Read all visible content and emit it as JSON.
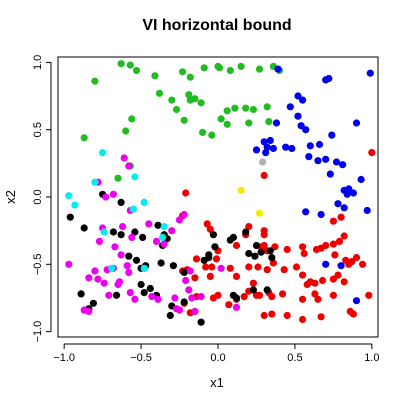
{
  "chart_data": {
    "type": "scatter",
    "title": "VI horizontal bound",
    "xlabel": "x1",
    "ylabel": "x2",
    "xlim": [
      -1.04,
      1.04
    ],
    "ylim": [
      -1.04,
      1.04
    ],
    "x_ticks": [
      -1.0,
      -0.5,
      0.0,
      0.5,
      1.0
    ],
    "x_tick_labels": [
      "−1.0",
      "−0.5",
      "0.0",
      "0.5",
      "1.0"
    ],
    "y_ticks": [
      -1.0,
      -0.5,
      0.0,
      0.5,
      1.0
    ],
    "y_tick_labels": [
      "−1.0",
      "−0.5",
      "0.0",
      "0.5",
      "1.0"
    ],
    "grid": false,
    "legend": "none",
    "colors": {
      "green": "#22bb22",
      "blue": "#0000ee",
      "red": "#ee0000",
      "black": "#000000",
      "magenta": "#ee00ee",
      "cyan": "#00eeee",
      "yellow": "#eeee00",
      "gray": "#b0b0b0"
    },
    "series": [
      {
        "color": "green",
        "points": [
          [
            -0.8,
            0.86
          ],
          [
            -0.63,
            0.99
          ],
          [
            -0.57,
            0.98
          ],
          [
            -0.53,
            0.94
          ],
          [
            -0.41,
            0.9
          ],
          [
            -0.23,
            0.93
          ],
          [
            -0.18,
            0.89
          ],
          [
            -0.09,
            0.96
          ],
          [
            0.0,
            0.97
          ],
          [
            0.01,
            0.96
          ],
          [
            0.08,
            0.94
          ],
          [
            0.15,
            0.97
          ],
          [
            0.27,
            0.95
          ],
          [
            0.36,
            0.97
          ],
          [
            0.4,
            0.94
          ],
          [
            -0.38,
            0.77
          ],
          [
            -0.3,
            0.72
          ],
          [
            -0.27,
            0.65
          ],
          [
            -0.19,
            0.76
          ],
          [
            -0.18,
            0.72
          ],
          [
            -0.15,
            0.73
          ],
          [
            -0.11,
            0.7
          ],
          [
            -0.22,
            0.57
          ],
          [
            -0.1,
            0.48
          ],
          [
            -0.04,
            0.46
          ],
          [
            0.02,
            0.58
          ],
          [
            0.06,
            0.64
          ],
          [
            0.11,
            0.66
          ],
          [
            0.18,
            0.66
          ],
          [
            0.23,
            0.65
          ],
          [
            0.32,
            0.67
          ],
          [
            0.2,
            0.55
          ],
          [
            0.33,
            0.56
          ],
          [
            0.06,
            0.54
          ],
          [
            -0.56,
            0.58
          ],
          [
            -0.6,
            0.49
          ],
          [
            -0.87,
            0.44
          ],
          [
            -0.57,
            0.23
          ],
          [
            -0.65,
            0.14
          ]
        ]
      },
      {
        "color": "blue",
        "points": [
          [
            0.39,
            0.95
          ],
          [
            0.99,
            0.92
          ],
          [
            0.7,
            0.87
          ],
          [
            0.72,
            0.88
          ],
          [
            0.52,
            0.75
          ],
          [
            0.55,
            0.72
          ],
          [
            0.47,
            0.67
          ],
          [
            0.52,
            0.6
          ],
          [
            0.54,
            0.53
          ],
          [
            0.57,
            0.5
          ],
          [
            0.38,
            0.55
          ],
          [
            0.9,
            0.55
          ],
          [
            0.74,
            0.46
          ],
          [
            0.6,
            0.38
          ],
          [
            0.66,
            0.39
          ],
          [
            0.34,
            0.42
          ],
          [
            0.3,
            0.41
          ],
          [
            0.32,
            0.37
          ],
          [
            0.25,
            0.35
          ],
          [
            0.31,
            0.33
          ],
          [
            0.36,
            0.36
          ],
          [
            0.44,
            0.37
          ],
          [
            0.48,
            0.36
          ],
          [
            0.59,
            0.3
          ],
          [
            0.65,
            0.27
          ],
          [
            0.7,
            0.28
          ],
          [
            0.73,
            0.17
          ],
          [
            0.77,
            0.26
          ],
          [
            0.81,
            0.24
          ],
          [
            0.82,
            0.05
          ],
          [
            0.84,
            0.02
          ],
          [
            0.85,
            0.06
          ],
          [
            0.88,
            0.03
          ],
          [
            0.93,
            0.13
          ],
          [
            0.97,
            -0.1
          ],
          [
            0.57,
            -0.11
          ],
          [
            0.67,
            -0.13
          ],
          [
            0.78,
            -0.05
          ],
          [
            0.82,
            -0.08
          ],
          [
            0.7,
            -0.5
          ],
          [
            0.8,
            -0.51
          ],
          [
            0.9,
            -0.77
          ]
        ]
      },
      {
        "color": "red",
        "points": [
          [
            1.0,
            0.33
          ],
          [
            0.3,
            0.16
          ],
          [
            -0.21,
            0.03
          ],
          [
            -0.23,
            -0.14
          ],
          [
            -0.07,
            -0.2
          ],
          [
            -0.05,
            -0.24
          ],
          [
            0.2,
            -0.22
          ],
          [
            0.3,
            -0.25
          ],
          [
            0.3,
            -0.28
          ],
          [
            0.18,
            -0.28
          ],
          [
            0.12,
            -0.36
          ],
          [
            0.28,
            -0.37
          ],
          [
            0.3,
            -0.36
          ],
          [
            0.37,
            -0.37
          ],
          [
            0.32,
            -0.4
          ],
          [
            0.45,
            -0.39
          ],
          [
            0.55,
            -0.37
          ],
          [
            0.56,
            -0.42
          ],
          [
            0.64,
            -0.39
          ],
          [
            0.67,
            -0.38
          ],
          [
            0.7,
            -0.36
          ],
          [
            0.75,
            -0.35
          ],
          [
            0.79,
            -0.33
          ],
          [
            0.82,
            -0.29
          ],
          [
            0.8,
            -0.15
          ],
          [
            0.75,
            -0.18
          ],
          [
            0.76,
            -0.43
          ],
          [
            0.9,
            -0.45
          ],
          [
            0.83,
            -0.47
          ],
          [
            0.87,
            -0.48
          ],
          [
            0.85,
            -0.5
          ],
          [
            0.94,
            -0.5
          ],
          [
            0.0,
            -0.4
          ],
          [
            -0.04,
            -0.52
          ],
          [
            -0.01,
            -0.46
          ],
          [
            -0.08,
            -0.52
          ],
          [
            -0.2,
            -0.54
          ],
          [
            -0.23,
            -0.55
          ],
          [
            -0.15,
            -0.6
          ],
          [
            -0.05,
            -0.59
          ],
          [
            0.08,
            -0.53
          ],
          [
            0.12,
            -0.59
          ],
          [
            0.2,
            -0.52
          ],
          [
            0.26,
            -0.52
          ],
          [
            0.32,
            -0.54
          ],
          [
            0.36,
            -0.49
          ],
          [
            0.43,
            -0.54
          ],
          [
            0.51,
            -0.52
          ],
          [
            0.55,
            -0.58
          ],
          [
            0.58,
            -0.65
          ],
          [
            0.6,
            -0.63
          ],
          [
            0.63,
            -0.64
          ],
          [
            0.68,
            -0.62
          ],
          [
            0.75,
            -0.61
          ],
          [
            0.78,
            -0.58
          ],
          [
            0.82,
            -0.63
          ],
          [
            0.55,
            -0.76
          ],
          [
            0.63,
            -0.72
          ],
          [
            0.65,
            -0.76
          ],
          [
            0.75,
            -0.73
          ],
          [
            0.98,
            -0.73
          ],
          [
            0.86,
            -0.85
          ],
          [
            0.88,
            -0.87
          ],
          [
            0.67,
            -0.89
          ],
          [
            0.55,
            -0.91
          ],
          [
            0.45,
            -0.88
          ],
          [
            0.42,
            -0.72
          ],
          [
            0.33,
            -0.71
          ],
          [
            0.35,
            -0.74
          ],
          [
            0.27,
            -0.73
          ],
          [
            0.23,
            -0.64
          ],
          [
            0.2,
            -0.7
          ],
          [
            0.17,
            -0.74
          ],
          [
            0.25,
            -0.73
          ],
          [
            0.0,
            -0.73
          ],
          [
            -0.03,
            -0.75
          ],
          [
            -0.14,
            -0.74
          ],
          [
            -0.22,
            -0.79
          ],
          [
            -0.18,
            -0.86
          ],
          [
            0.07,
            -0.8
          ],
          [
            0.12,
            -0.76
          ],
          [
            0.3,
            -0.88
          ],
          [
            0.35,
            -0.87
          ],
          [
            -0.14,
            -0.46
          ]
        ]
      },
      {
        "color": "black",
        "points": [
          [
            -0.96,
            -0.15
          ],
          [
            -0.75,
            0.02
          ],
          [
            -0.87,
            -0.23
          ],
          [
            -0.68,
            -0.26
          ],
          [
            -0.63,
            -0.28
          ],
          [
            -0.54,
            -0.26
          ],
          [
            -0.39,
            -0.21
          ],
          [
            -0.35,
            -0.29
          ],
          [
            -0.36,
            -0.36
          ],
          [
            -0.33,
            -0.31
          ],
          [
            -0.35,
            -0.28
          ],
          [
            -0.03,
            -0.28
          ],
          [
            -0.02,
            -0.37
          ],
          [
            0.1,
            -0.3
          ],
          [
            0.28,
            -0.41
          ],
          [
            0.2,
            -0.42
          ],
          [
            -0.58,
            -0.44
          ],
          [
            -0.53,
            -0.47
          ],
          [
            -0.5,
            -0.53
          ],
          [
            -0.47,
            -0.51
          ],
          [
            -0.37,
            -0.49
          ],
          [
            -0.29,
            -0.51
          ],
          [
            -0.22,
            -0.56
          ],
          [
            -0.06,
            -0.43
          ],
          [
            -0.06,
            -0.45
          ],
          [
            -0.09,
            -0.47
          ],
          [
            -0.89,
            -0.72
          ],
          [
            -0.81,
            -0.79
          ],
          [
            -0.84,
            -0.83
          ],
          [
            -0.66,
            -0.73
          ],
          [
            -0.5,
            -0.65
          ],
          [
            -0.48,
            -0.71
          ],
          [
            -0.44,
            -0.68
          ],
          [
            -0.4,
            -0.73
          ],
          [
            -0.31,
            -0.88
          ],
          [
            -0.3,
            -0.81
          ],
          [
            -0.22,
            -0.78
          ],
          [
            -0.11,
            -0.93
          ],
          [
            0.1,
            -0.73
          ],
          [
            0.12,
            -0.75
          ],
          [
            0.23,
            -0.69
          ],
          [
            0.32,
            -0.69
          ],
          [
            0.08,
            -0.32
          ],
          [
            0.25,
            -0.36
          ],
          [
            0.18,
            -0.26
          ],
          [
            0.24,
            -0.44
          ],
          [
            0.34,
            -0.4
          ],
          [
            -0.63,
            -0.04
          ],
          [
            -0.49,
            -0.3
          ],
          [
            0.35,
            -0.45
          ]
        ]
      },
      {
        "color": "magenta",
        "points": [
          [
            -0.78,
            0.11
          ],
          [
            -0.61,
            0.29
          ],
          [
            -0.58,
            0.23
          ],
          [
            -0.73,
            0.0
          ],
          [
            -0.68,
            0.02
          ],
          [
            -0.75,
            -0.23
          ],
          [
            -0.56,
            -0.3
          ],
          [
            -0.45,
            -0.2
          ],
          [
            -0.4,
            -0.33
          ],
          [
            -0.35,
            -0.35
          ],
          [
            -0.3,
            -0.25
          ],
          [
            -0.25,
            -0.17
          ],
          [
            -0.22,
            -0.13
          ],
          [
            -0.97,
            -0.5
          ],
          [
            -0.77,
            -0.33
          ],
          [
            -0.67,
            -0.37
          ],
          [
            -0.63,
            -0.43
          ],
          [
            -0.59,
            -0.51
          ],
          [
            -0.48,
            -0.53
          ],
          [
            -0.72,
            -0.54
          ],
          [
            -0.68,
            -0.53
          ],
          [
            -0.58,
            -0.56
          ],
          [
            -0.64,
            -0.63
          ],
          [
            -0.57,
            -0.71
          ],
          [
            -0.54,
            -0.76
          ],
          [
            -0.65,
            -0.65
          ],
          [
            -0.84,
            -0.6
          ],
          [
            -0.8,
            -0.55
          ],
          [
            -0.78,
            -0.61
          ],
          [
            -0.74,
            -0.64
          ],
          [
            -0.71,
            -0.73
          ],
          [
            -0.43,
            -0.74
          ],
          [
            -0.39,
            -0.76
          ],
          [
            -0.28,
            -0.75
          ],
          [
            -0.25,
            -0.84
          ],
          [
            -0.27,
            -0.83
          ],
          [
            -0.19,
            -0.69
          ],
          [
            -0.17,
            -0.75
          ],
          [
            -0.21,
            -0.62
          ],
          [
            -0.18,
            -0.55
          ],
          [
            -0.11,
            -0.74
          ],
          [
            -0.15,
            -0.85
          ],
          [
            -0.87,
            -0.84
          ],
          [
            -0.84,
            -0.85
          ],
          [
            0.12,
            -0.82
          ],
          [
            0.02,
            -0.53
          ],
          [
            -0.62,
            -0.22
          ],
          [
            -0.57,
            -0.1
          ]
        ]
      },
      {
        "color": "cyan",
        "points": [
          [
            -0.75,
            0.33
          ],
          [
            -0.97,
            0.01
          ],
          [
            -0.93,
            -0.06
          ],
          [
            -0.8,
            0.11
          ],
          [
            -0.74,
            -0.26
          ],
          [
            -0.48,
            -0.04
          ],
          [
            -0.55,
            -0.09
          ],
          [
            -0.35,
            -0.22
          ],
          [
            -0.36,
            -0.3
          ],
          [
            -0.69,
            -0.53
          ],
          [
            -0.54,
            0.15
          ],
          [
            -0.48,
            -0.53
          ]
        ]
      },
      {
        "color": "yellow",
        "points": [
          [
            0.15,
            0.05
          ],
          [
            0.27,
            -0.12
          ]
        ]
      },
      {
        "color": "gray",
        "points": [
          [
            0.29,
            0.26
          ]
        ]
      }
    ]
  }
}
